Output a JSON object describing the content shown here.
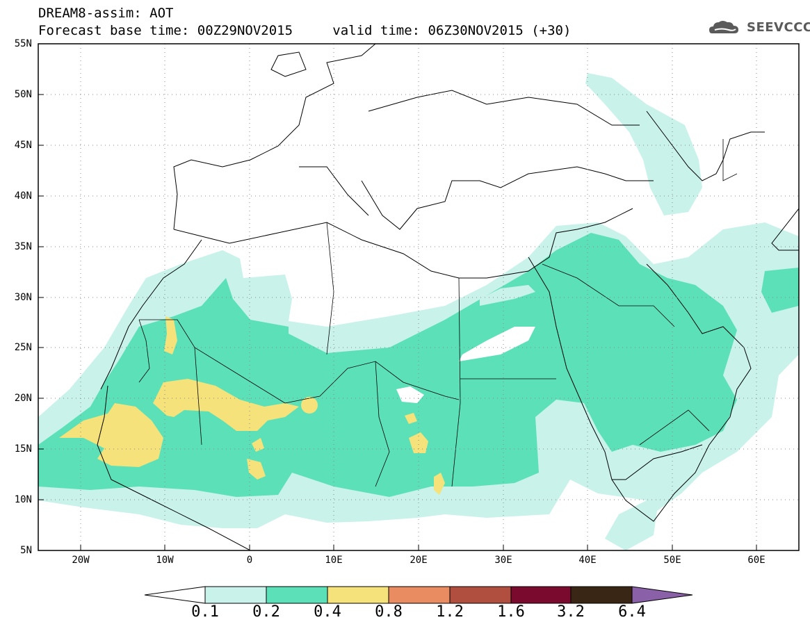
{
  "header": {
    "title_line1": "DREAM8-assim: AOT",
    "base_time_label": "Forecast base time: 00Z29NOV2015",
    "valid_time_label": "valid time: 06Z30NOV2015 (+30)",
    "logo_text": "SEEVCCC"
  },
  "map": {
    "projection": "lat-lon",
    "lon_range": [
      -25,
      65
    ],
    "lat_range": [
      5,
      55
    ],
    "lat_ticks": [
      "55N",
      "50N",
      "45N",
      "40N",
      "35N",
      "30N",
      "25N",
      "20N",
      "15N",
      "10N",
      "5N"
    ],
    "lon_ticks": [
      "20W",
      "10W",
      "0",
      "10E",
      "20E",
      "30E",
      "40E",
      "50E",
      "60E"
    ],
    "gridlines": "dotted"
  },
  "colorbar": {
    "levels": [
      "0.1",
      "0.2",
      "0.4",
      "0.8",
      "1.2",
      "1.6",
      "3.2",
      "6.4"
    ],
    "colors": [
      "#ffffff",
      "#c8f2ea",
      "#5ce0b8",
      "#f5e27a",
      "#e98c62",
      "#b04f40",
      "#7a0a2e",
      "#3a2614",
      "#8a60a8"
    ]
  },
  "legend_colors": {
    "low": "#c8f2ea",
    "mid": "#5ce0b8",
    "high": "#f5e27a"
  }
}
